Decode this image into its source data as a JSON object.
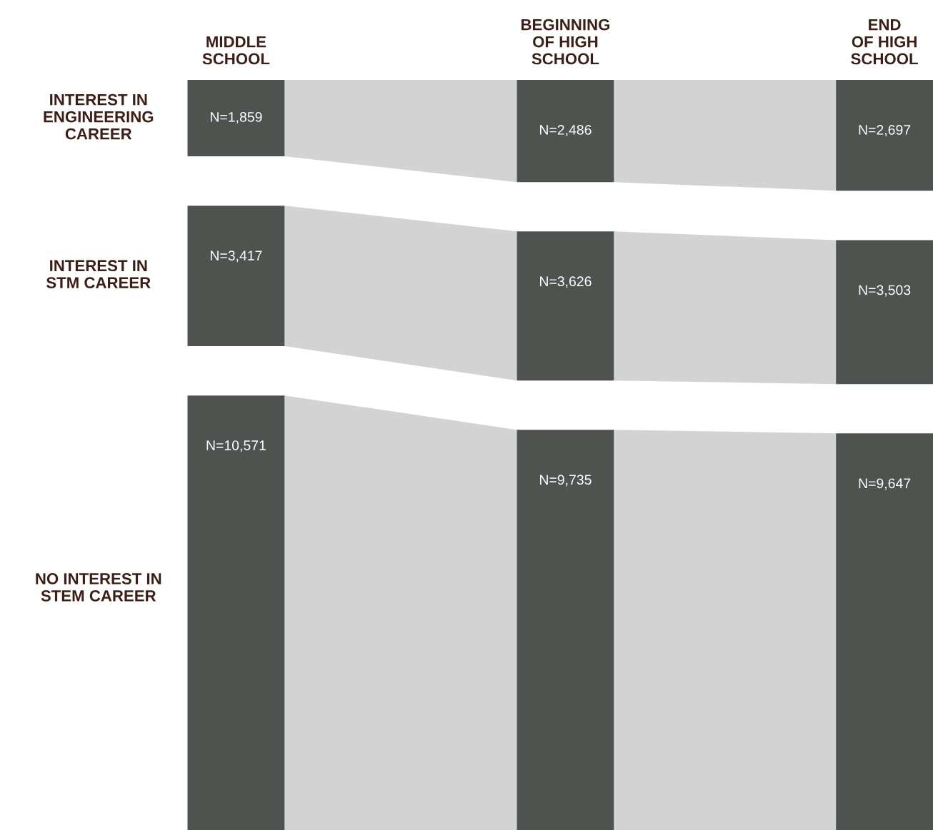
{
  "chart_data": {
    "type": "other",
    "categories": [
      "MIDDLE\nSCHOOL",
      "BEGINNING\nOF HIGH\nSCHOOL",
      "END\nOF HIGH\nSCHOOL"
    ],
    "series": [
      {
        "name": "INTEREST IN\nENGINEERING\nCAREER",
        "color": "#4f5350",
        "values": [
          1859,
          2486,
          2697
        ],
        "value_labels": [
          "N=1,859",
          "N=2,486",
          "N=2,697"
        ]
      },
      {
        "name": "INTEREST IN\nSTM CAREER",
        "color": "#4f5350",
        "values": [
          3417,
          3626,
          3503
        ],
        "value_labels": [
          "N=3,417",
          "N=3,626",
          "N=3,503"
        ]
      },
      {
        "name": "NO INTEREST IN\nSTEM CAREER",
        "color": "#4f5350",
        "values": [
          10571,
          9735,
          9647
        ],
        "value_labels": [
          "N=10,571",
          "N=9,735",
          "N=9,647"
        ]
      }
    ]
  }
}
